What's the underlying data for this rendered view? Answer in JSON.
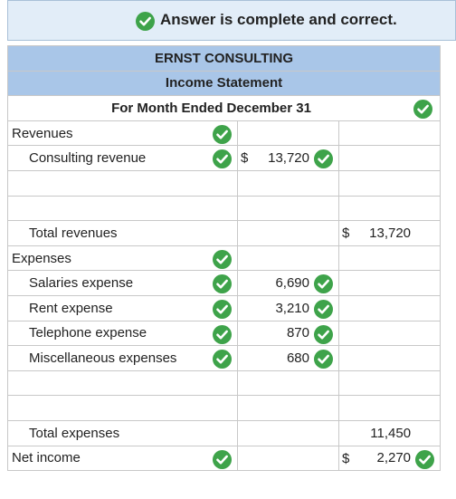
{
  "banner": "Answer is complete and correct.",
  "header": {
    "company": "ERNST CONSULTING",
    "statement": "Income Statement",
    "period": "For Month Ended December 31"
  },
  "rows": [
    {
      "label": "Revenues"
    },
    {
      "label": "Consulting revenue",
      "currency": "$",
      "amount": "13,720"
    },
    {
      "label": "Total revenues",
      "currency": "$",
      "total": "13,720"
    },
    {
      "label": "Expenses"
    },
    {
      "label": "Salaries expense",
      "amount": "6,690"
    },
    {
      "label": "Rent expense",
      "amount": "3,210"
    },
    {
      "label": "Telephone expense",
      "amount": "870"
    },
    {
      "label": "Miscellaneous expenses",
      "amount": "680"
    },
    {
      "label": "Total expenses",
      "total": "11,450"
    },
    {
      "label": "Net income",
      "currency": "$",
      "total": "2,270"
    }
  ]
}
